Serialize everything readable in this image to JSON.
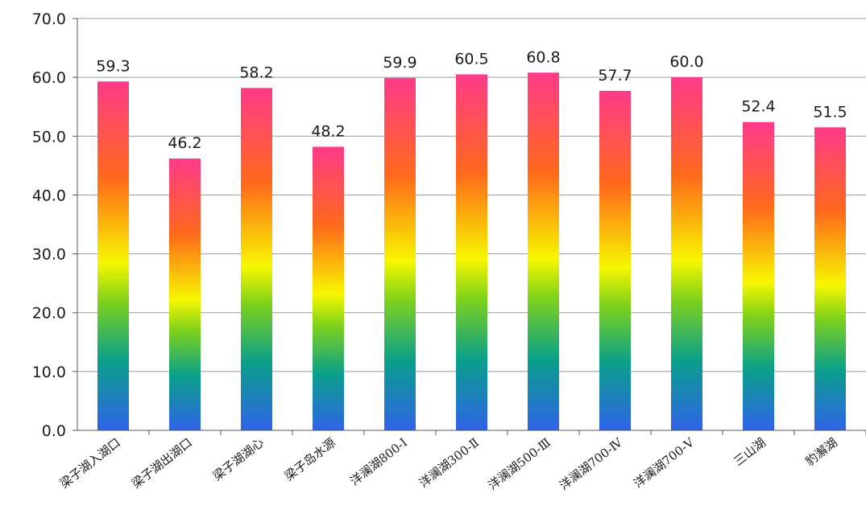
{
  "chart_data": {
    "type": "bar",
    "title": "",
    "xlabel": "",
    "ylabel": "",
    "ylim": [
      0,
      70
    ],
    "yticks": [
      0,
      10,
      20,
      30,
      40,
      50,
      60,
      70
    ],
    "ytick_labels": [
      "0.0",
      "10.0",
      "20.0",
      "30.0",
      "40.0",
      "50.0",
      "60.0",
      "70.0"
    ],
    "grid": true,
    "legend": "none",
    "categories": [
      "梁子湖入湖口",
      "梁子湖出湖口",
      "梁子湖湖心",
      "梁子岛水源",
      "洋澜湖800-Ⅰ",
      "洋澜湖300-Ⅱ",
      "洋澜湖500-Ⅲ",
      "洋澜湖700-Ⅳ",
      "洋澜湖700-Ⅴ",
      "三山湖",
      "豹澥湖"
    ],
    "values": [
      59.3,
      46.2,
      58.2,
      48.2,
      59.9,
      60.5,
      60.8,
      57.7,
      60.0,
      52.4,
      51.5
    ],
    "value_labels": [
      "59.3",
      "46.2",
      "58.2",
      "48.2",
      "59.9",
      "60.5",
      "60.8",
      "57.7",
      "60.0",
      "52.4",
      "51.5"
    ],
    "colors": {
      "gradient_bottom": "#2f63e8",
      "gradient_teal": "#0aa08a",
      "gradient_green": "#7fd21a",
      "gradient_yellow": "#f7f700",
      "gradient_orange": "#ff6a1a",
      "gradient_top": "#ff3a8a",
      "grid": "#9a9a9a",
      "axis": "#555555"
    }
  }
}
